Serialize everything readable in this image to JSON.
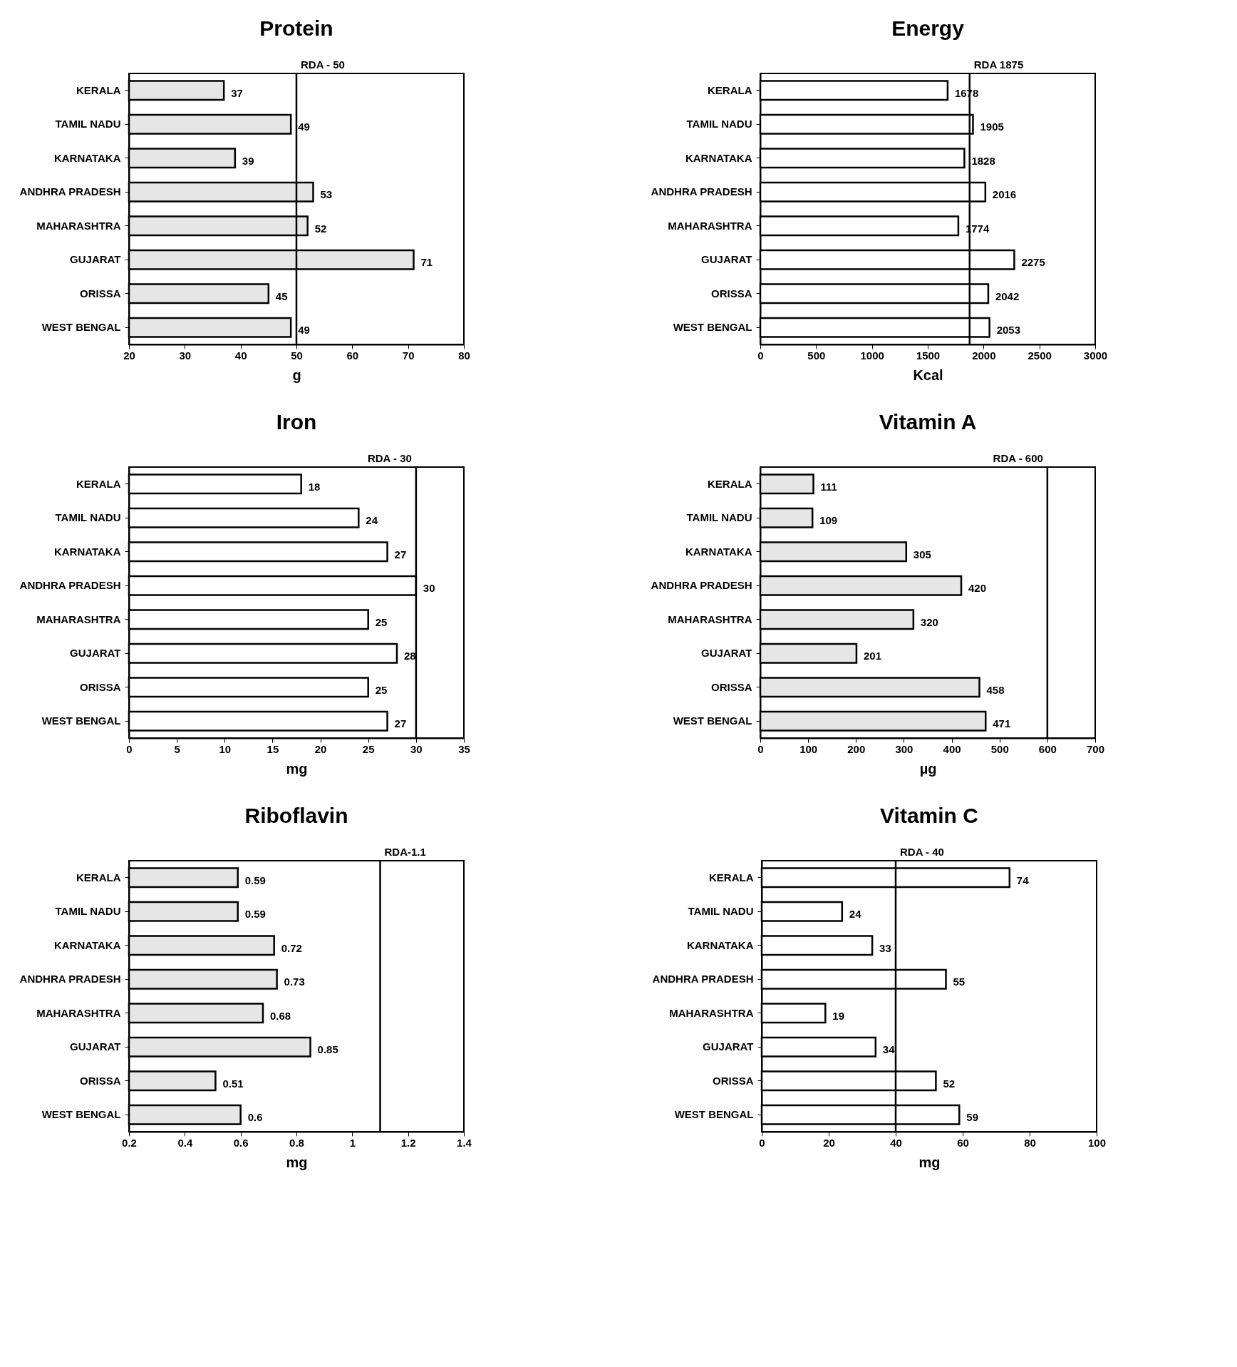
{
  "chart_data": [
    {
      "type": "bar",
      "orientation": "horizontal",
      "title": "Protein",
      "xlabel": "g",
      "categories": [
        "KERALA",
        "TAMIL NADU",
        "KARNATAKA",
        "ANDHRA PRADESH",
        "MAHARASHTRA",
        "GUJARAT",
        "ORISSA",
        "WEST BENGAL"
      ],
      "values": [
        37,
        49,
        39,
        53,
        52,
        71,
        45,
        49
      ],
      "color": "#e6e6e6",
      "xlim": [
        20,
        80
      ],
      "xticks": [
        20,
        30,
        40,
        50,
        60,
        70,
        80
      ],
      "data_labels": true,
      "ref_lines": [
        {
          "axis": "x",
          "value": 50,
          "label": "RDA - 50"
        }
      ]
    },
    {
      "type": "bar",
      "orientation": "horizontal",
      "title": "Energy",
      "xlabel": "Kcal",
      "categories": [
        "KERALA",
        "TAMIL NADU",
        "KARNATAKA",
        "ANDHRA PRADESH",
        "MAHARASHTRA",
        "GUJARAT",
        "ORISSA",
        "WEST BENGAL"
      ],
      "values": [
        1678,
        1905,
        1828,
        2016,
        1774,
        2275,
        2042,
        2053
      ],
      "color": "#ffffff",
      "xlim": [
        0,
        3000
      ],
      "xticks": [
        0,
        500,
        1000,
        1500,
        2000,
        2500,
        3000
      ],
      "data_labels": true,
      "ref_lines": [
        {
          "axis": "x",
          "value": 1875,
          "label": "RDA 1875"
        }
      ]
    },
    {
      "type": "bar",
      "orientation": "horizontal",
      "title": "Iron",
      "xlabel": "mg",
      "categories": [
        "KERALA",
        "TAMIL NADU",
        "KARNATAKA",
        "ANDHRA PRADESH",
        "MAHARASHTRA",
        "GUJARAT",
        "ORISSA",
        "WEST BENGAL"
      ],
      "values": [
        18,
        24,
        27,
        30,
        25,
        28,
        25,
        27
      ],
      "color": "#ffffff",
      "xlim": [
        0,
        35
      ],
      "xticks": [
        0,
        5,
        10,
        15,
        20,
        25,
        30,
        35
      ],
      "data_labels": true,
      "ref_lines": [
        {
          "axis": "x",
          "value": 30,
          "label": "RDA - 30"
        }
      ]
    },
    {
      "type": "bar",
      "orientation": "horizontal",
      "title": "Vitamin A",
      "xlabel": "µg",
      "categories": [
        "KERALA",
        "TAMIL NADU",
        "KARNATAKA",
        "ANDHRA PRADESH",
        "MAHARASHTRA",
        "GUJARAT",
        "ORISSA",
        "WEST BENGAL"
      ],
      "values": [
        111,
        109,
        305,
        420,
        320,
        201,
        458,
        471
      ],
      "color": "#e6e6e6",
      "xlim": [
        0,
        700
      ],
      "xticks": [
        0,
        100,
        200,
        300,
        400,
        500,
        600,
        700
      ],
      "data_labels": true,
      "ref_lines": [
        {
          "axis": "x",
          "value": 600,
          "label": "RDA - 600"
        }
      ]
    },
    {
      "type": "bar",
      "orientation": "horizontal",
      "title": "Riboflavin",
      "xlabel": "mg",
      "categories": [
        "KERALA",
        "TAMIL NADU",
        "KARNATAKA",
        "ANDHRA PRADESH",
        "MAHARASHTRA",
        "GUJARAT",
        "ORISSA",
        "WEST BENGAL"
      ],
      "values": [
        0.59,
        0.59,
        0.72,
        0.73,
        0.68,
        0.85,
        0.51,
        0.6
      ],
      "color": "#e6e6e6",
      "xlim": [
        0.2,
        1.4
      ],
      "xticks": [
        0.2,
        0.4,
        0.6,
        0.8,
        1,
        1.2,
        1.4
      ],
      "data_labels": true,
      "ref_lines": [
        {
          "axis": "x",
          "value": 1.1,
          "label": "RDA-1.1"
        }
      ]
    },
    {
      "type": "bar",
      "orientation": "horizontal",
      "title": "Vitamin C",
      "xlabel": "mg",
      "categories": [
        "KERALA",
        "TAMIL NADU",
        "KARNATAKA",
        "ANDHRA PRADESH",
        "MAHARASHTRA",
        "GUJARAT",
        "ORISSA",
        "WEST BENGAL"
      ],
      "values": [
        74,
        24,
        33,
        55,
        19,
        34,
        52,
        59
      ],
      "color": "#ffffff",
      "xlim": [
        0,
        100
      ],
      "xticks": [
        0,
        20,
        40,
        60,
        80,
        100
      ],
      "data_labels": true,
      "ref_lines": [
        {
          "axis": "x",
          "value": 40,
          "label": "RDA - 40"
        }
      ]
    }
  ]
}
